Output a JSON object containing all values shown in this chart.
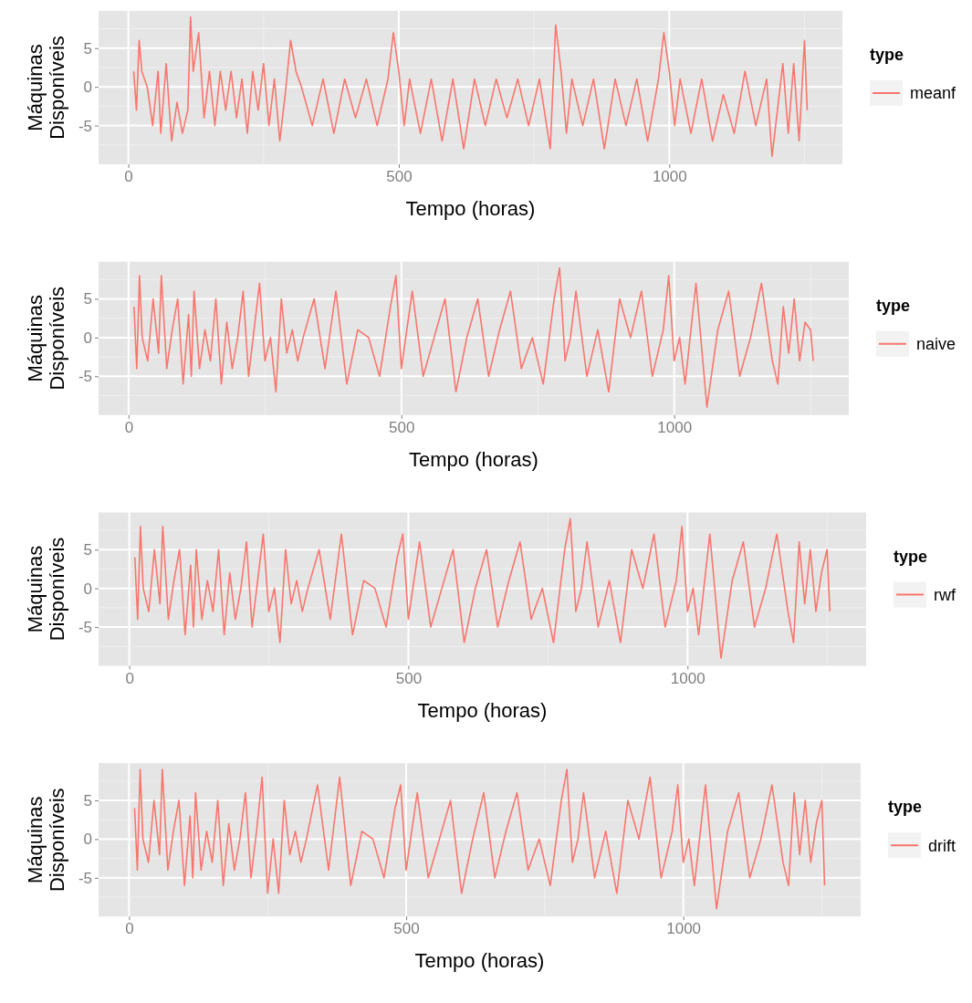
{
  "chart_data": [
    {
      "type": "line",
      "xlabel": "Tempo (horas)",
      "ylabel": "Máquinas\nDisponíveis",
      "legend_title": "type",
      "legend": "right",
      "grid": true,
      "xlim": [
        -55,
        1320
      ],
      "ylim": [
        -10,
        9.8
      ],
      "xticks": [
        0,
        500,
        1000
      ],
      "yticks": [
        -5,
        0,
        5
      ],
      "series": [
        {
          "name": "meanf",
          "color": "#f8766d",
          "x": [
            10,
            15,
            20,
            25,
            35,
            45,
            55,
            60,
            70,
            80,
            90,
            100,
            110,
            115,
            120,
            130,
            140,
            150,
            160,
            170,
            180,
            190,
            200,
            210,
            220,
            230,
            240,
            250,
            260,
            270,
            280,
            290,
            300,
            310,
            320,
            340,
            360,
            380,
            400,
            420,
            440,
            460,
            480,
            490,
            500,
            510,
            520,
            540,
            560,
            580,
            600,
            620,
            640,
            660,
            680,
            700,
            720,
            740,
            760,
            780,
            790,
            800,
            810,
            820,
            840,
            860,
            880,
            900,
            920,
            940,
            960,
            980,
            990,
            1000,
            1010,
            1020,
            1040,
            1060,
            1080,
            1100,
            1120,
            1140,
            1160,
            1180,
            1190,
            1200,
            1210,
            1220,
            1230,
            1240,
            1250,
            1255
          ],
          "values": [
            2,
            -3,
            6,
            2,
            0,
            -5,
            2,
            -6,
            3,
            -7,
            -2,
            -6,
            -3,
            9,
            2,
            7,
            -4,
            2,
            -5,
            2,
            -3,
            2,
            -4,
            1,
            -6,
            2,
            -3,
            3,
            -5,
            1,
            -7,
            -1,
            6,
            2,
            0,
            -5,
            1,
            -6,
            1,
            -4,
            1,
            -5,
            1,
            7,
            2,
            -5,
            1,
            -6,
            1,
            -7,
            1,
            -8,
            1,
            -5,
            1,
            -4,
            1,
            -5,
            1,
            -8,
            8,
            2,
            -6,
            1,
            -5,
            1,
            -8,
            1,
            -5,
            1,
            -7,
            1,
            7,
            2,
            -5,
            1,
            -6,
            1,
            -7,
            -1,
            -6,
            2,
            -5,
            1,
            -9,
            -3,
            3,
            -6,
            3,
            -7,
            6,
            -3
          ]
        }
      ]
    },
    {
      "type": "line",
      "xlabel": "Tempo (horas)",
      "ylabel": "Máquinas\nDisponíveis",
      "legend_title": "type",
      "legend": "right",
      "grid": true,
      "xlim": [
        -55,
        1320
      ],
      "ylim": [
        -10,
        9.8
      ],
      "xticks": [
        0,
        500,
        1000
      ],
      "yticks": [
        -5,
        0,
        5
      ],
      "series": [
        {
          "name": "naive",
          "color": "#f8766d",
          "x": [
            10,
            15,
            20,
            25,
            35,
            45,
            55,
            60,
            70,
            80,
            90,
            100,
            110,
            115,
            120,
            130,
            140,
            150,
            160,
            170,
            180,
            190,
            200,
            210,
            220,
            230,
            240,
            250,
            260,
            270,
            280,
            290,
            300,
            310,
            320,
            340,
            360,
            380,
            400,
            420,
            440,
            460,
            480,
            490,
            500,
            510,
            520,
            540,
            560,
            580,
            600,
            620,
            640,
            660,
            680,
            700,
            720,
            740,
            760,
            780,
            790,
            800,
            810,
            820,
            840,
            860,
            880,
            900,
            920,
            940,
            960,
            980,
            990,
            1000,
            1010,
            1020,
            1040,
            1060,
            1080,
            1100,
            1120,
            1140,
            1160,
            1180,
            1190,
            1200,
            1210,
            1220,
            1230,
            1240,
            1250,
            1255
          ],
          "values": [
            4,
            -4,
            8,
            0,
            -3,
            5,
            -2,
            8,
            -4,
            1,
            5,
            -6,
            3,
            -5,
            6,
            -4,
            1,
            -3,
            5,
            -6,
            2,
            -4,
            0,
            6,
            -5,
            1,
            7,
            -3,
            0,
            -7,
            5,
            -2,
            1,
            -3,
            0,
            5,
            -4,
            6,
            -6,
            1,
            0,
            -5,
            4,
            8,
            -4,
            1,
            6,
            -5,
            0,
            5,
            -7,
            0,
            5,
            -5,
            1,
            6,
            -4,
            0,
            -6,
            5,
            9,
            -3,
            0,
            6,
            -5,
            1,
            -7,
            5,
            0,
            6,
            -5,
            1,
            8,
            -3,
            0,
            -6,
            7,
            -9,
            1,
            6,
            -5,
            0,
            7,
            -3,
            -6,
            4,
            -2,
            5,
            -3,
            2,
            1,
            -3
          ]
        }
      ]
    },
    {
      "type": "line",
      "xlabel": "Tempo (horas)",
      "ylabel": "Máquinas\nDisponíveis",
      "legend_title": "type",
      "legend": "right",
      "grid": true,
      "xlim": [
        -55,
        1320
      ],
      "ylim": [
        -10,
        9.8
      ],
      "xticks": [
        0,
        500,
        1000
      ],
      "yticks": [
        -5,
        0,
        5
      ],
      "series": [
        {
          "name": "rwf",
          "color": "#f8766d",
          "x": [
            10,
            15,
            20,
            25,
            35,
            45,
            55,
            60,
            70,
            80,
            90,
            100,
            110,
            115,
            120,
            130,
            140,
            150,
            160,
            170,
            180,
            190,
            200,
            210,
            220,
            230,
            240,
            250,
            260,
            270,
            280,
            290,
            300,
            310,
            320,
            340,
            360,
            380,
            400,
            420,
            440,
            460,
            480,
            490,
            500,
            510,
            520,
            540,
            560,
            580,
            600,
            620,
            640,
            660,
            680,
            700,
            720,
            740,
            760,
            780,
            790,
            800,
            810,
            820,
            840,
            860,
            880,
            900,
            920,
            940,
            960,
            980,
            990,
            1000,
            1010,
            1020,
            1040,
            1060,
            1080,
            1100,
            1120,
            1140,
            1160,
            1180,
            1190,
            1200,
            1210,
            1220,
            1230,
            1240,
            1250,
            1255
          ],
          "values": [
            4,
            -4,
            8,
            0,
            -3,
            5,
            -2,
            8,
            -4,
            1,
            5,
            -6,
            3,
            -5,
            5,
            -4,
            1,
            -3,
            5,
            -6,
            2,
            -4,
            0,
            6,
            -5,
            1,
            7,
            -3,
            0,
            -7,
            5,
            -2,
            1,
            -3,
            0,
            5,
            -4,
            7,
            -6,
            1,
            0,
            -5,
            4,
            7,
            -4,
            1,
            6,
            -5,
            0,
            5,
            -7,
            0,
            5,
            -5,
            1,
            6,
            -4,
            0,
            -7,
            5,
            9,
            -3,
            0,
            6,
            -5,
            1,
            -7,
            5,
            0,
            7,
            -5,
            1,
            8,
            -3,
            0,
            -6,
            7,
            -9,
            1,
            6,
            -5,
            0,
            7,
            -3,
            -7,
            6,
            -2,
            5,
            -3,
            2,
            5,
            -3
          ]
        }
      ]
    },
    {
      "type": "line",
      "xlabel": "Tempo (horas)",
      "ylabel": "Máquinas\nDisponíveis",
      "legend_title": "type",
      "legend": "right",
      "grid": true,
      "xlim": [
        -55,
        1320
      ],
      "ylim": [
        -10,
        9.8
      ],
      "xticks": [
        0,
        500,
        1000
      ],
      "yticks": [
        -5,
        0,
        5
      ],
      "series": [
        {
          "name": "drift",
          "color": "#f8766d",
          "x": [
            10,
            15,
            20,
            25,
            35,
            45,
            55,
            60,
            70,
            80,
            90,
            100,
            110,
            115,
            120,
            130,
            140,
            150,
            160,
            170,
            180,
            190,
            200,
            210,
            220,
            230,
            240,
            250,
            260,
            270,
            280,
            290,
            300,
            310,
            320,
            340,
            360,
            380,
            400,
            420,
            440,
            460,
            480,
            490,
            500,
            510,
            520,
            540,
            560,
            580,
            600,
            620,
            640,
            660,
            680,
            700,
            720,
            740,
            760,
            780,
            790,
            800,
            810,
            820,
            840,
            860,
            880,
            900,
            920,
            940,
            960,
            980,
            990,
            1000,
            1010,
            1020,
            1040,
            1060,
            1080,
            1100,
            1120,
            1140,
            1160,
            1180,
            1190,
            1200,
            1210,
            1220,
            1230,
            1240,
            1250,
            1255
          ],
          "values": [
            4,
            -4,
            9,
            0,
            -3,
            5,
            -2,
            9,
            -4,
            1,
            5,
            -6,
            3,
            -5,
            6,
            -4,
            1,
            -3,
            5,
            -6,
            2,
            -4,
            0,
            6,
            -5,
            1,
            8,
            -7,
            0,
            -7,
            5,
            -2,
            1,
            -3,
            0,
            7,
            -4,
            8,
            -6,
            1,
            0,
            -5,
            4,
            7,
            -4,
            1,
            6,
            -5,
            0,
            5,
            -7,
            0,
            6,
            -5,
            1,
            6,
            -4,
            0,
            -6,
            5,
            9,
            -3,
            0,
            6,
            -5,
            1,
            -7,
            5,
            0,
            8,
            -5,
            1,
            7,
            -3,
            0,
            -6,
            7,
            -9,
            1,
            6,
            -5,
            0,
            7,
            -3,
            -6,
            6,
            -2,
            5,
            -3,
            2,
            5,
            -6
          ]
        }
      ]
    }
  ]
}
